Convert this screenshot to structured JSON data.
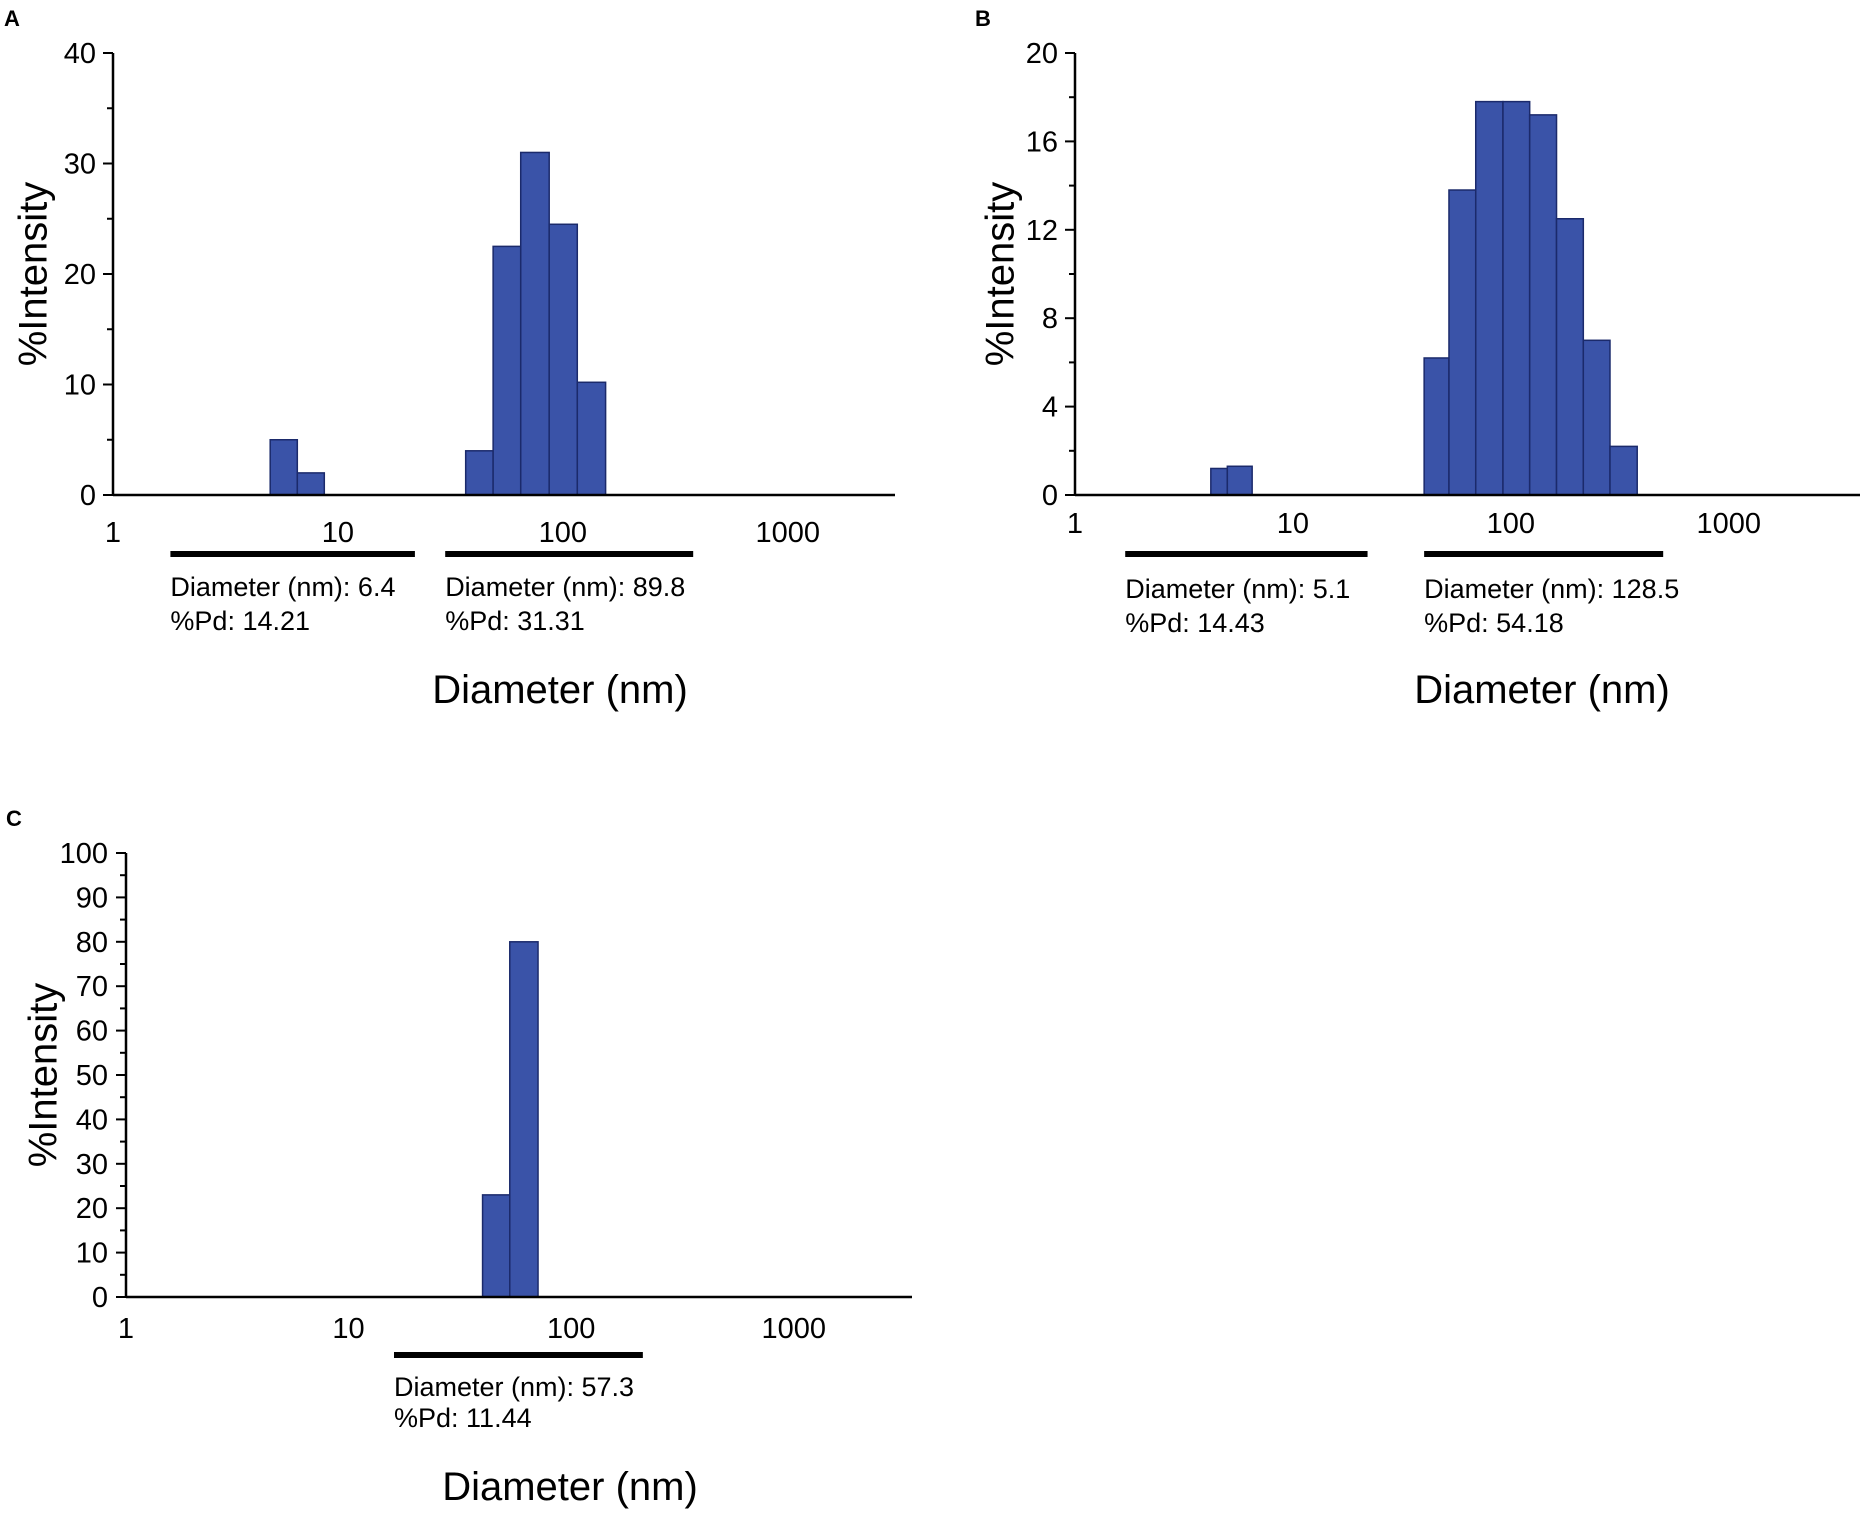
{
  "colors": {
    "bar_fill": "#3a53a8",
    "bar_edge": "#1b2a6b",
    "axis": "#000000"
  },
  "chart_data": [
    {
      "panel": "A",
      "type": "bar",
      "xscale": "log",
      "xlim": [
        1,
        3000
      ],
      "xticks": [
        1,
        10,
        100,
        1000
      ],
      "xtick_labels": [
        "1",
        "10",
        "100",
        "1000"
      ],
      "ylim": [
        0,
        40
      ],
      "yticks": [
        0,
        10,
        20,
        30,
        40
      ],
      "ytick_labels": [
        "0",
        "10",
        "20",
        "30",
        "40"
      ],
      "xlabel": "Diameter (nm)",
      "ylabel": "%Intensity",
      "bins": [
        {
          "x0": 5.0,
          "x1": 6.6,
          "y": 5.0
        },
        {
          "x0": 6.6,
          "x1": 8.7,
          "y": 2.0
        },
        {
          "x0": 37.0,
          "x1": 49.0,
          "y": 4.0
        },
        {
          "x0": 49.0,
          "x1": 65.0,
          "y": 22.5
        },
        {
          "x0": 65.0,
          "x1": 87.0,
          "y": 31.0
        },
        {
          "x0": 87.0,
          "x1": 116.0,
          "y": 24.5
        },
        {
          "x0": 116.0,
          "x1": 155.0,
          "y": 10.2
        }
      ],
      "peaks": [
        {
          "range": [
            1.8,
            22.0
          ],
          "line1": "Diameter (nm): 6.4",
          "line2": "%Pd: 14.21"
        },
        {
          "range": [
            30.0,
            380.0
          ],
          "line1": "Diameter (nm): 89.8",
          "line2": "%Pd: 31.31"
        }
      ]
    },
    {
      "panel": "B",
      "type": "bar",
      "xscale": "log",
      "xlim": [
        1,
        4000
      ],
      "xticks": [
        1,
        10,
        100,
        1000
      ],
      "xtick_labels": [
        "1",
        "10",
        "100",
        "1000"
      ],
      "ylim": [
        0,
        20
      ],
      "yticks": [
        0,
        4,
        8,
        12,
        16,
        20
      ],
      "ytick_labels": [
        "0",
        "4",
        "8",
        "12",
        "16",
        "20"
      ],
      "xlabel": "Diameter (nm)",
      "ylabel": "%Intensity",
      "bins": [
        {
          "x0": 4.2,
          "x1": 5.0,
          "y": 1.2
        },
        {
          "x0": 5.0,
          "x1": 6.5,
          "y": 1.3
        },
        {
          "x0": 40.0,
          "x1": 52.0,
          "y": 6.2
        },
        {
          "x0": 52.0,
          "x1": 69.0,
          "y": 13.8
        },
        {
          "x0": 69.0,
          "x1": 92.0,
          "y": 17.8
        },
        {
          "x0": 92.0,
          "x1": 122.0,
          "y": 17.8
        },
        {
          "x0": 122.0,
          "x1": 162.0,
          "y": 17.2
        },
        {
          "x0": 162.0,
          "x1": 215.0,
          "y": 12.5
        },
        {
          "x0": 215.0,
          "x1": 285.0,
          "y": 7.0
        },
        {
          "x0": 285.0,
          "x1": 380.0,
          "y": 2.2
        }
      ],
      "peaks": [
        {
          "range": [
            1.7,
            22.0
          ],
          "line1": "Diameter (nm): 5.1",
          "line2": "%Pd: 14.43"
        },
        {
          "range": [
            40.0,
            500.0
          ],
          "line1": "Diameter (nm): 128.5",
          "line2": "%Pd: 54.18"
        }
      ]
    },
    {
      "panel": "C",
      "type": "bar",
      "xscale": "log",
      "xlim": [
        1,
        3400
      ],
      "xticks": [
        1,
        10,
        100,
        1000
      ],
      "xtick_labels": [
        "1",
        "10",
        "100",
        "1000"
      ],
      "ylim": [
        0,
        100
      ],
      "yticks": [
        0,
        10,
        20,
        30,
        40,
        50,
        60,
        70,
        80,
        90,
        100
      ],
      "ytick_labels": [
        "0",
        "10",
        "20",
        "30",
        "40",
        "50",
        "60",
        "70",
        "80",
        "90",
        "100"
      ],
      "xlabel": "Diameter (nm)",
      "ylabel": "%Intensity",
      "bins": [
        {
          "x0": 40.0,
          "x1": 53.0,
          "y": 23.0
        },
        {
          "x0": 53.0,
          "x1": 71.0,
          "y": 80.0
        }
      ],
      "peaks": [
        {
          "range": [
            16.0,
            210.0
          ],
          "line1": "Diameter (nm): 57.3",
          "line2": "%Pd: 11.44"
        }
      ]
    }
  ]
}
